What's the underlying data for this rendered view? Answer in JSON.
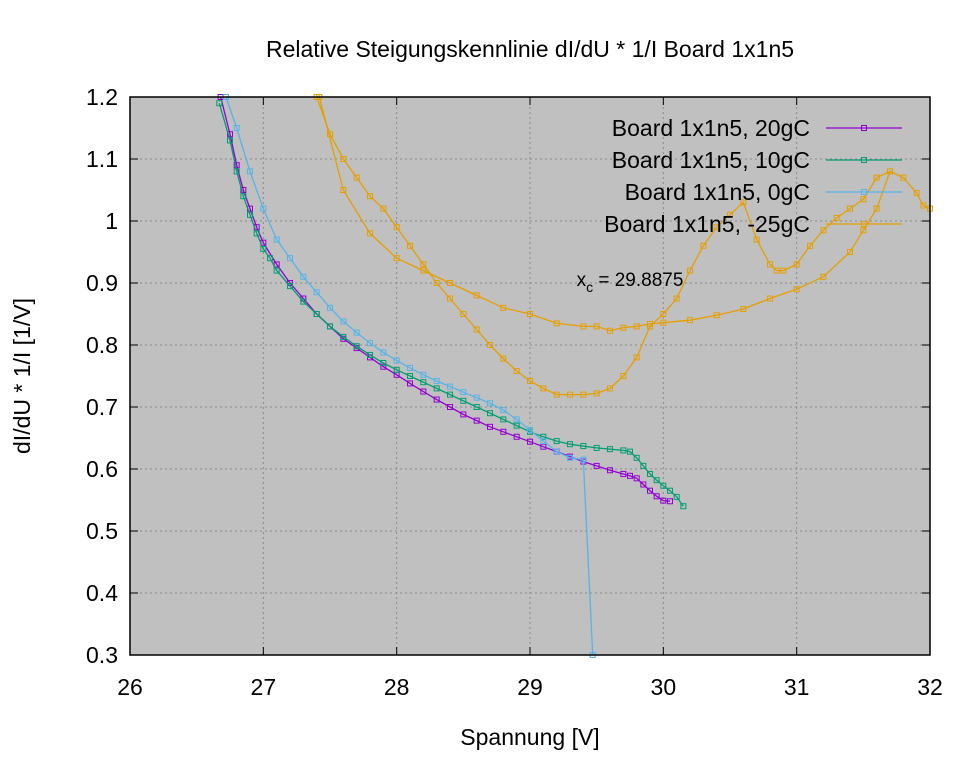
{
  "chart_data": {
    "type": "line",
    "title": "Relative Steigungskennlinie dI/dU * 1/I Board 1x1n5",
    "xlabel": "Spannung [V]",
    "ylabel": "dI/dU * 1/I [1/V]",
    "xlim": [
      26,
      32
    ],
    "ylim": [
      0.3,
      1.2
    ],
    "xticks": [
      "26",
      "27",
      "28",
      "29",
      "30",
      "31",
      "32"
    ],
    "yticks": [
      "0.3",
      "0.4",
      "0.5",
      "0.6",
      "0.7",
      "0.8",
      "0.9",
      "1",
      "1.1",
      "1.2"
    ],
    "grid": true,
    "legend_position": "top-right",
    "annotation": {
      "sym": "x",
      "sub": "c",
      "rest": " = 29.8875",
      "x": 29.75,
      "y": 0.895
    },
    "series": [
      {
        "name": "Board 1x1n5, 20gC",
        "color": "#9400D3",
        "points": [
          [
            26.68,
            1.2
          ],
          [
            26.75,
            1.14
          ],
          [
            26.8,
            1.09
          ],
          [
            26.85,
            1.05
          ],
          [
            26.9,
            1.02
          ],
          [
            26.95,
            0.99
          ],
          [
            27.0,
            0.965
          ],
          [
            27.1,
            0.93
          ],
          [
            27.2,
            0.9
          ],
          [
            27.3,
            0.875
          ],
          [
            27.4,
            0.85
          ],
          [
            27.5,
            0.83
          ],
          [
            27.6,
            0.81
          ],
          [
            27.7,
            0.795
          ],
          [
            27.8,
            0.78
          ],
          [
            27.9,
            0.765
          ],
          [
            28.0,
            0.752
          ],
          [
            28.1,
            0.738
          ],
          [
            28.2,
            0.725
          ],
          [
            28.3,
            0.712
          ],
          [
            28.4,
            0.7
          ],
          [
            28.5,
            0.688
          ],
          [
            28.6,
            0.678
          ],
          [
            28.7,
            0.668
          ],
          [
            28.8,
            0.66
          ],
          [
            28.9,
            0.652
          ],
          [
            29.0,
            0.644
          ],
          [
            29.1,
            0.636
          ],
          [
            29.2,
            0.628
          ],
          [
            29.3,
            0.62
          ],
          [
            29.4,
            0.612
          ],
          [
            29.5,
            0.605
          ],
          [
            29.6,
            0.598
          ],
          [
            29.7,
            0.592
          ],
          [
            29.75,
            0.589
          ],
          [
            29.8,
            0.585
          ],
          [
            29.85,
            0.575
          ],
          [
            29.9,
            0.565
          ],
          [
            29.95,
            0.556
          ],
          [
            30.0,
            0.549
          ],
          [
            30.05,
            0.548
          ]
        ]
      },
      {
        "name": "Board 1x1n5, 10gC",
        "color": "#009E73",
        "points": [
          [
            26.67,
            1.19
          ],
          [
            26.75,
            1.13
          ],
          [
            26.8,
            1.08
          ],
          [
            26.85,
            1.04
          ],
          [
            26.9,
            1.01
          ],
          [
            26.95,
            0.98
          ],
          [
            27.0,
            0.955
          ],
          [
            27.05,
            0.94
          ],
          [
            27.1,
            0.92
          ],
          [
            27.2,
            0.895
          ],
          [
            27.3,
            0.87
          ],
          [
            27.4,
            0.85
          ],
          [
            27.5,
            0.83
          ],
          [
            27.6,
            0.813
          ],
          [
            27.7,
            0.798
          ],
          [
            27.8,
            0.784
          ],
          [
            27.9,
            0.771
          ],
          [
            28.0,
            0.76
          ],
          [
            28.1,
            0.75
          ],
          [
            28.2,
            0.74
          ],
          [
            28.3,
            0.73
          ],
          [
            28.4,
            0.72
          ],
          [
            28.5,
            0.71
          ],
          [
            28.6,
            0.7
          ],
          [
            28.7,
            0.69
          ],
          [
            28.8,
            0.68
          ],
          [
            28.9,
            0.67
          ],
          [
            29.0,
            0.66
          ],
          [
            29.1,
            0.652
          ],
          [
            29.2,
            0.645
          ],
          [
            29.3,
            0.64
          ],
          [
            29.4,
            0.637
          ],
          [
            29.5,
            0.634
          ],
          [
            29.6,
            0.632
          ],
          [
            29.7,
            0.63
          ],
          [
            29.75,
            0.628
          ],
          [
            29.8,
            0.618
          ],
          [
            29.85,
            0.605
          ],
          [
            29.9,
            0.592
          ],
          [
            29.95,
            0.582
          ],
          [
            30.0,
            0.573
          ],
          [
            30.05,
            0.565
          ],
          [
            30.1,
            0.555
          ],
          [
            30.15,
            0.54
          ]
        ]
      },
      {
        "name": "Board 1x1n5, 0gC",
        "color": "#56B4E9",
        "points": [
          [
            26.72,
            1.2
          ],
          [
            26.8,
            1.15
          ],
          [
            26.9,
            1.08
          ],
          [
            27.0,
            1.02
          ],
          [
            27.1,
            0.97
          ],
          [
            27.2,
            0.94
          ],
          [
            27.3,
            0.91
          ],
          [
            27.4,
            0.885
          ],
          [
            27.5,
            0.86
          ],
          [
            27.6,
            0.838
          ],
          [
            27.7,
            0.82
          ],
          [
            27.8,
            0.803
          ],
          [
            27.9,
            0.788
          ],
          [
            28.0,
            0.775
          ],
          [
            28.1,
            0.763
          ],
          [
            28.2,
            0.752
          ],
          [
            28.3,
            0.742
          ],
          [
            28.4,
            0.733
          ],
          [
            28.5,
            0.724
          ],
          [
            28.6,
            0.715
          ],
          [
            28.7,
            0.706
          ],
          [
            28.8,
            0.695
          ],
          [
            28.9,
            0.68
          ],
          [
            29.0,
            0.663
          ],
          [
            29.1,
            0.645
          ],
          [
            29.2,
            0.628
          ],
          [
            29.3,
            0.618
          ],
          [
            29.4,
            0.615
          ],
          [
            29.47,
            0.3
          ]
        ]
      },
      {
        "name": "Board 1x1n5, -25gC",
        "color": "#E69F00",
        "points": [
          [
            27.4,
            1.2
          ],
          [
            27.5,
            1.14
          ],
          [
            27.6,
            1.1
          ],
          [
            27.7,
            1.07
          ],
          [
            27.8,
            1.04
          ],
          [
            27.9,
            1.02
          ],
          [
            28.0,
            0.99
          ],
          [
            28.1,
            0.96
          ],
          [
            28.2,
            0.93
          ],
          [
            28.3,
            0.9
          ],
          [
            28.4,
            0.875
          ],
          [
            28.5,
            0.85
          ],
          [
            28.6,
            0.825
          ],
          [
            28.7,
            0.8
          ],
          [
            28.8,
            0.778
          ],
          [
            28.9,
            0.758
          ],
          [
            29.0,
            0.742
          ],
          [
            29.1,
            0.73
          ],
          [
            29.2,
            0.72
          ],
          [
            29.3,
            0.72
          ],
          [
            29.4,
            0.72
          ],
          [
            29.5,
            0.722
          ],
          [
            29.6,
            0.73
          ],
          [
            29.7,
            0.75
          ],
          [
            29.8,
            0.78
          ],
          [
            29.9,
            0.83
          ],
          [
            30.0,
            0.85
          ],
          [
            30.1,
            0.875
          ],
          [
            30.2,
            0.92
          ],
          [
            30.3,
            0.96
          ],
          [
            30.4,
            0.99
          ],
          [
            30.5,
            1.01
          ],
          [
            30.6,
            1.03
          ],
          [
            30.7,
            0.97
          ],
          [
            30.8,
            0.93
          ],
          [
            30.85,
            0.92
          ],
          [
            30.9,
            0.92
          ],
          [
            31.0,
            0.93
          ],
          [
            31.1,
            0.96
          ],
          [
            31.2,
            0.985
          ],
          [
            31.3,
            1.005
          ],
          [
            31.4,
            1.02
          ],
          [
            31.5,
            1.035
          ],
          [
            31.6,
            1.07
          ],
          [
            31.7,
            1.08
          ],
          [
            31.8,
            1.07
          ],
          [
            31.9,
            1.045
          ],
          [
            31.95,
            1.025
          ],
          [
            32.0,
            1.02
          ]
        ]
      },
      {
        "name": "",
        "color": "#E69F00",
        "points": [
          [
            27.42,
            1.2
          ],
          [
            27.6,
            1.05
          ],
          [
            27.8,
            0.98
          ],
          [
            28.0,
            0.94
          ],
          [
            28.2,
            0.92
          ],
          [
            28.4,
            0.9
          ],
          [
            28.6,
            0.88
          ],
          [
            28.8,
            0.86
          ],
          [
            29.0,
            0.85
          ],
          [
            29.2,
            0.835
          ],
          [
            29.4,
            0.83
          ],
          [
            29.5,
            0.83
          ],
          [
            29.6,
            0.823
          ],
          [
            29.7,
            0.828
          ],
          [
            29.8,
            0.83
          ],
          [
            29.9,
            0.834
          ],
          [
            30.0,
            0.836
          ],
          [
            30.2,
            0.84
          ],
          [
            30.4,
            0.848
          ],
          [
            30.6,
            0.858
          ],
          [
            30.8,
            0.875
          ],
          [
            31.0,
            0.89
          ],
          [
            31.2,
            0.91
          ],
          [
            31.4,
            0.95
          ],
          [
            31.5,
            0.985
          ],
          [
            31.6,
            1.02
          ],
          [
            31.7,
            1.08
          ]
        ]
      }
    ]
  }
}
